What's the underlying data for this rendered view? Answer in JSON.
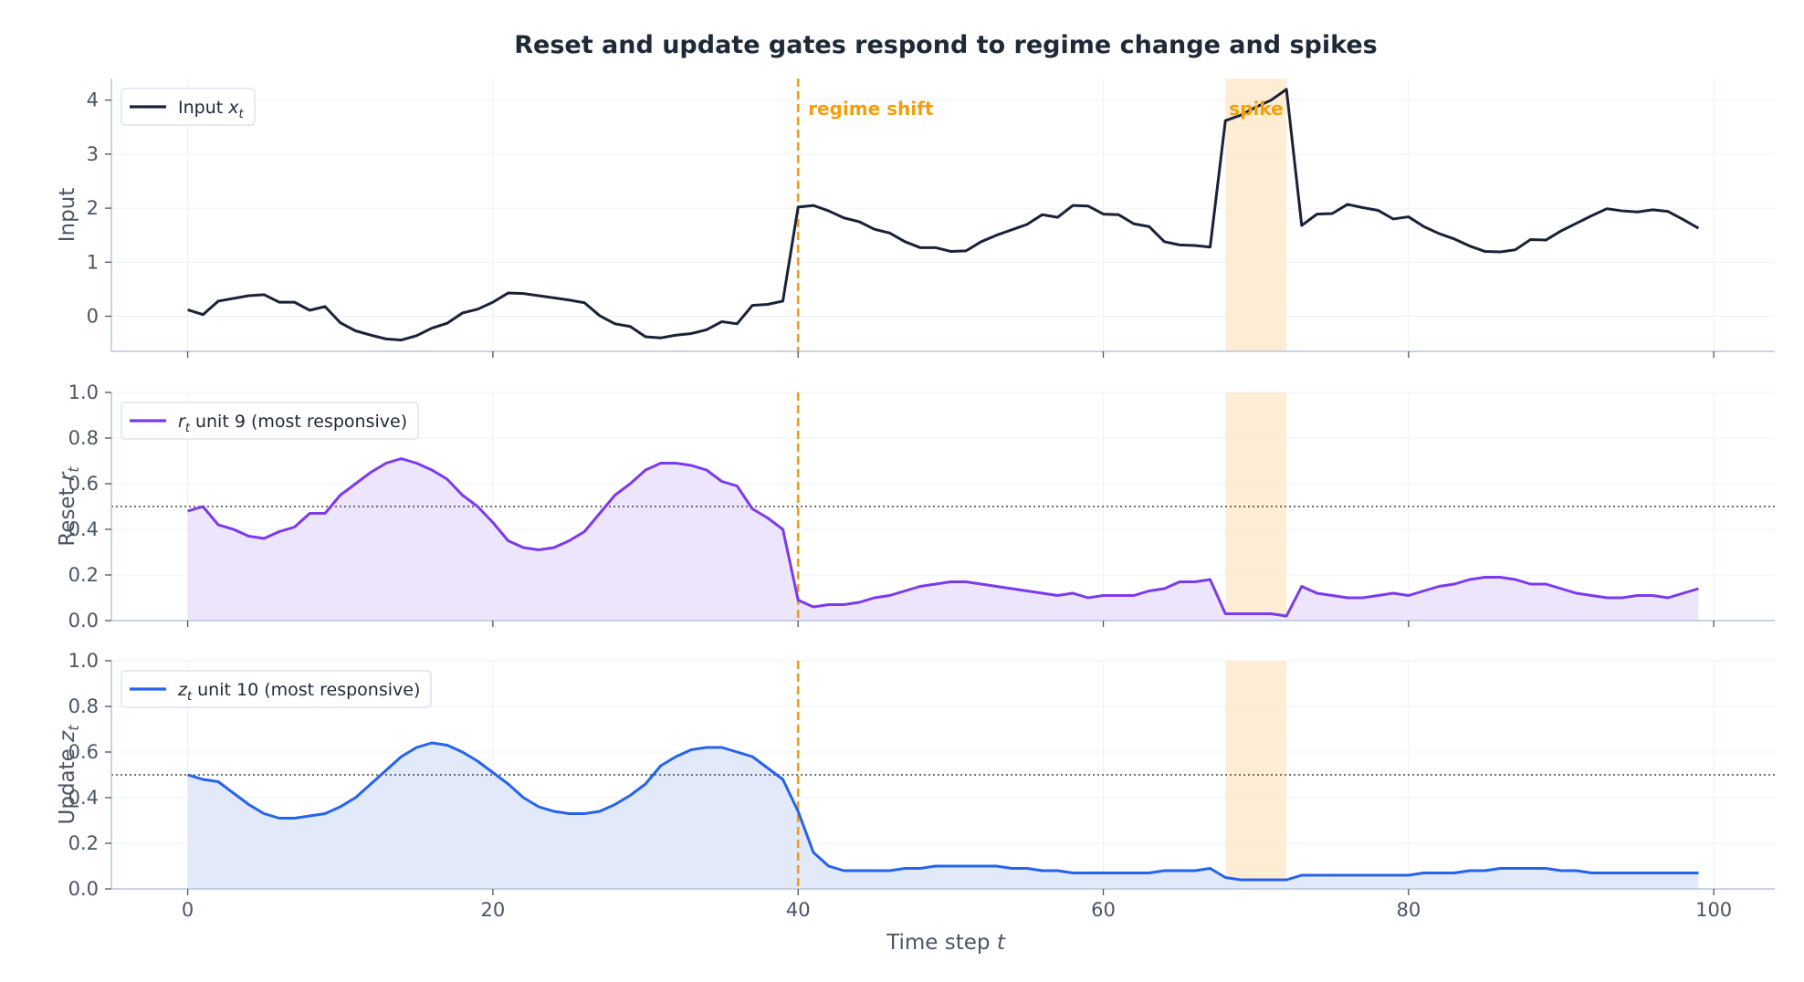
{
  "chart_data": {
    "type": "line",
    "title": "Reset and update gates respond to regime change and spikes",
    "xlabel": "Time step t",
    "xlim": [
      -5,
      104
    ],
    "xticks": [
      0,
      20,
      40,
      60,
      80,
      100
    ],
    "grid": true,
    "x": [
      0,
      1,
      2,
      3,
      4,
      5,
      6,
      7,
      8,
      9,
      10,
      11,
      12,
      13,
      14,
      15,
      16,
      17,
      18,
      19,
      20,
      21,
      22,
      23,
      24,
      25,
      26,
      27,
      28,
      29,
      30,
      31,
      32,
      33,
      34,
      35,
      36,
      37,
      38,
      39,
      40,
      41,
      42,
      43,
      44,
      45,
      46,
      47,
      48,
      49,
      50,
      51,
      52,
      53,
      54,
      55,
      56,
      57,
      58,
      59,
      60,
      61,
      62,
      63,
      64,
      65,
      66,
      67,
      68,
      69,
      70,
      71,
      72,
      73,
      74,
      75,
      76,
      77,
      78,
      79,
      80,
      81,
      82,
      83,
      84,
      85,
      86,
      87,
      88,
      89,
      90,
      91,
      92,
      93,
      94,
      95,
      96,
      97,
      98,
      99
    ],
    "annotations": {
      "regime_shift": {
        "x": 40,
        "label": "regime shift",
        "color": "#f59e0b"
      },
      "spike": {
        "x_start": 68,
        "x_end": 72,
        "label": "spike",
        "color": "#f59e0b",
        "fill": "#fdebd0"
      }
    },
    "panels": [
      {
        "ylabel": "Input",
        "ylim": [
          -0.65,
          4.4
        ],
        "yticks": [
          "0",
          "1",
          "2",
          "3",
          "4"
        ],
        "legend": "top-left",
        "fill_under": false,
        "threshold": null,
        "series": [
          {
            "name": "Input x_t",
            "legend_main": "Input ",
            "legend_sym": "x",
            "legend_sub": "t",
            "legend_rest": "",
            "color": "#1a2238",
            "values": [
              0.12,
              0.03,
              0.28,
              0.33,
              0.38,
              0.4,
              0.26,
              0.26,
              0.11,
              0.18,
              -0.12,
              -0.27,
              -0.35,
              -0.42,
              -0.44,
              -0.36,
              -0.22,
              -0.13,
              0.06,
              0.13,
              0.26,
              0.43,
              0.42,
              0.38,
              0.34,
              0.3,
              0.25,
              0.01,
              -0.14,
              -0.19,
              -0.38,
              -0.4,
              -0.35,
              -0.32,
              -0.25,
              -0.1,
              -0.14,
              0.2,
              0.22,
              0.28,
              2.02,
              2.05,
              1.95,
              1.82,
              1.75,
              1.61,
              1.54,
              1.38,
              1.27,
              1.27,
              1.2,
              1.21,
              1.38,
              1.5,
              1.6,
              1.7,
              1.88,
              1.83,
              2.05,
              2.04,
              1.89,
              1.88,
              1.71,
              1.66,
              1.38,
              1.32,
              1.31,
              1.28,
              3.62,
              3.72,
              3.87,
              4.0,
              4.2,
              1.68,
              1.89,
              1.9,
              2.07,
              2.01,
              1.96,
              1.8,
              1.84,
              1.66,
              1.53,
              1.43,
              1.3,
              1.2,
              1.19,
              1.23,
              1.42,
              1.41,
              1.58,
              1.72,
              1.86,
              1.99,
              1.95,
              1.93,
              1.97,
              1.94,
              1.79,
              1.63
            ]
          }
        ]
      },
      {
        "ylabel": "Reset r_t",
        "ylabel_main": "Reset ",
        "ylabel_sym": "r",
        "ylabel_sub": "t",
        "ylim": [
          0,
          1.0
        ],
        "yticks": [
          "0.0",
          "0.2",
          "0.4",
          "0.6",
          "0.8",
          "1.0"
        ],
        "legend": "top-left",
        "fill_under": true,
        "threshold": 0.5,
        "series": [
          {
            "name": "r_t unit 9 (most responsive)",
            "legend_main": "",
            "legend_sym": "r",
            "legend_sub": "t",
            "legend_rest": " unit 9 (most responsive)",
            "color": "#7c3aed",
            "fill": "#ede5fb",
            "values": [
              0.48,
              0.5,
              0.42,
              0.4,
              0.37,
              0.36,
              0.39,
              0.41,
              0.47,
              0.47,
              0.55,
              0.6,
              0.65,
              0.69,
              0.71,
              0.69,
              0.66,
              0.62,
              0.55,
              0.5,
              0.43,
              0.35,
              0.32,
              0.31,
              0.32,
              0.35,
              0.39,
              0.47,
              0.55,
              0.6,
              0.66,
              0.69,
              0.69,
              0.68,
              0.66,
              0.61,
              0.59,
              0.49,
              0.45,
              0.4,
              0.09,
              0.06,
              0.07,
              0.07,
              0.08,
              0.1,
              0.11,
              0.13,
              0.15,
              0.16,
              0.17,
              0.17,
              0.16,
              0.15,
              0.14,
              0.13,
              0.12,
              0.11,
              0.12,
              0.1,
              0.11,
              0.11,
              0.11,
              0.13,
              0.14,
              0.17,
              0.17,
              0.18,
              0.03,
              0.03,
              0.03,
              0.03,
              0.02,
              0.15,
              0.12,
              0.11,
              0.1,
              0.1,
              0.11,
              0.12,
              0.11,
              0.13,
              0.15,
              0.16,
              0.18,
              0.19,
              0.19,
              0.18,
              0.16,
              0.16,
              0.14,
              0.12,
              0.11,
              0.1,
              0.1,
              0.11,
              0.11,
              0.1,
              0.12,
              0.14
            ]
          }
        ]
      },
      {
        "ylabel": "Update z_t",
        "ylabel_main": "Update ",
        "ylabel_sym": "z",
        "ylabel_sub": "t",
        "ylim": [
          0,
          1.0
        ],
        "yticks": [
          "0.0",
          "0.2",
          "0.4",
          "0.6",
          "0.8",
          "1.0"
        ],
        "legend": "top-left",
        "fill_under": true,
        "threshold": 0.5,
        "series": [
          {
            "name": "z_t unit 10 (most responsive)",
            "legend_main": "",
            "legend_sym": "z",
            "legend_sub": "t",
            "legend_rest": " unit 10 (most responsive)",
            "color": "#2563eb",
            "fill": "#e2e9f9",
            "values": [
              0.5,
              0.48,
              0.47,
              0.42,
              0.37,
              0.33,
              0.31,
              0.31,
              0.32,
              0.33,
              0.36,
              0.4,
              0.46,
              0.52,
              0.58,
              0.62,
              0.64,
              0.63,
              0.6,
              0.56,
              0.51,
              0.46,
              0.4,
              0.36,
              0.34,
              0.33,
              0.33,
              0.34,
              0.37,
              0.41,
              0.46,
              0.54,
              0.58,
              0.61,
              0.62,
              0.62,
              0.6,
              0.58,
              0.53,
              0.48,
              0.34,
              0.16,
              0.1,
              0.08,
              0.08,
              0.08,
              0.08,
              0.09,
              0.09,
              0.1,
              0.1,
              0.1,
              0.1,
              0.1,
              0.09,
              0.09,
              0.08,
              0.08,
              0.07,
              0.07,
              0.07,
              0.07,
              0.07,
              0.07,
              0.08,
              0.08,
              0.08,
              0.09,
              0.05,
              0.04,
              0.04,
              0.04,
              0.04,
              0.06,
              0.06,
              0.06,
              0.06,
              0.06,
              0.06,
              0.06,
              0.06,
              0.07,
              0.07,
              0.07,
              0.08,
              0.08,
              0.09,
              0.09,
              0.09,
              0.09,
              0.08,
              0.08,
              0.07,
              0.07,
              0.07,
              0.07,
              0.07,
              0.07,
              0.07,
              0.07
            ]
          }
        ]
      }
    ]
  }
}
